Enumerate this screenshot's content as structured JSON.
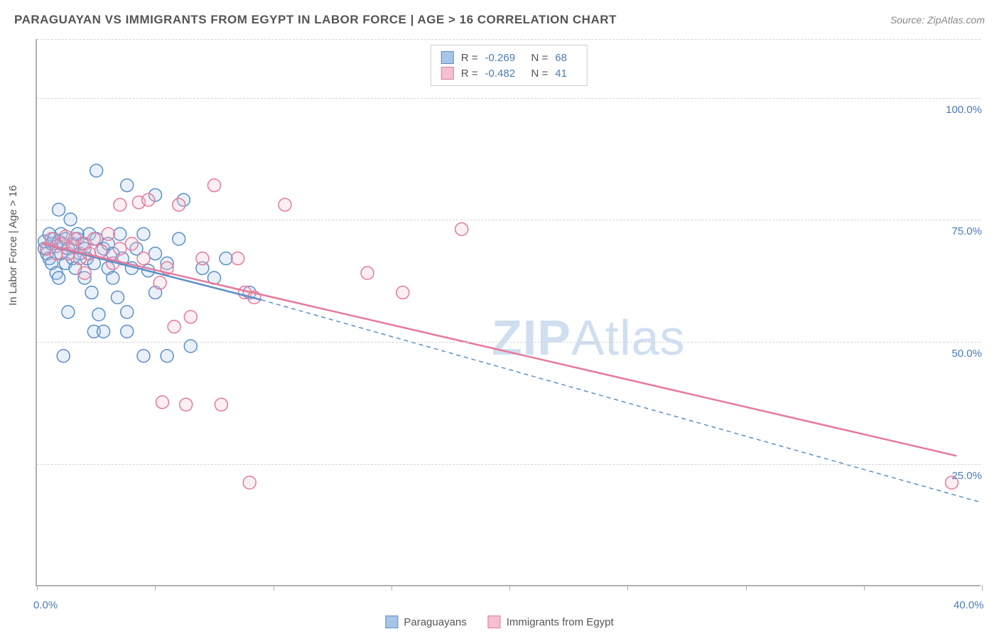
{
  "header": {
    "title": "PARAGUAYAN VS IMMIGRANTS FROM EGYPT IN LABOR FORCE | AGE > 16 CORRELATION CHART",
    "source": "Source: ZipAtlas.com"
  },
  "watermark": {
    "bold": "ZIP",
    "regular": "Atlas"
  },
  "chart": {
    "type": "scatter",
    "background_color": "#ffffff",
    "grid_color": "#d5d5d5",
    "axis_color": "#b0b0b0",
    "text_color": "#555555",
    "value_color": "#4a7bb5",
    "y_title": "In Labor Force | Age > 16",
    "xlim": [
      0,
      40
    ],
    "ylim": [
      0,
      112
    ],
    "x_ticks": [
      0,
      5,
      10,
      15,
      20,
      25,
      30,
      35,
      40
    ],
    "x_tick_labels": {
      "0": "0.0%",
      "40": "40.0%"
    },
    "y_ticks": [
      25,
      50,
      75,
      100
    ],
    "y_tick_labels": {
      "25": "25.0%",
      "50": "50.0%",
      "75": "75.0%",
      "100": "100.0%"
    },
    "marker_radius": 9,
    "marker_stroke_width": 1.5,
    "marker_fill_opacity": 0.25,
    "series": [
      {
        "name": "Paraguayans",
        "color_fill": "#a8c5e8",
        "color_stroke": "#5a8fc9",
        "R": "-0.269",
        "N": "68",
        "trend_solid": {
          "x1": 0.2,
          "y1": 70,
          "x2": 9.5,
          "y2": 58.5
        },
        "trend_dashed": {
          "x1": 9.5,
          "y1": 58.5,
          "x2": 40,
          "y2": 17
        },
        "points": [
          [
            0.3,
            69
          ],
          [
            0.3,
            70.5
          ],
          [
            0.4,
            68
          ],
          [
            0.5,
            72
          ],
          [
            0.5,
            67
          ],
          [
            0.6,
            70
          ],
          [
            0.6,
            66
          ],
          [
            0.7,
            71
          ],
          [
            0.8,
            69.5
          ],
          [
            0.8,
            64
          ],
          [
            0.9,
            70.5
          ],
          [
            0.9,
            77
          ],
          [
            0.9,
            63
          ],
          [
            1.0,
            68
          ],
          [
            1.0,
            72
          ],
          [
            1.1,
            70
          ],
          [
            1.1,
            47
          ],
          [
            1.2,
            66
          ],
          [
            1.2,
            71
          ],
          [
            1.3,
            69
          ],
          [
            1.3,
            56
          ],
          [
            1.4,
            75
          ],
          [
            1.5,
            67
          ],
          [
            1.5,
            70
          ],
          [
            1.6,
            65
          ],
          [
            1.7,
            71
          ],
          [
            1.7,
            72
          ],
          [
            1.8,
            68
          ],
          [
            1.9,
            70
          ],
          [
            2.0,
            63
          ],
          [
            2.0,
            69
          ],
          [
            2.1,
            67
          ],
          [
            2.2,
            72
          ],
          [
            2.3,
            60
          ],
          [
            2.4,
            66
          ],
          [
            2.4,
            52
          ],
          [
            2.5,
            85
          ],
          [
            2.5,
            71
          ],
          [
            2.6,
            55.5
          ],
          [
            2.8,
            69
          ],
          [
            2.8,
            52
          ],
          [
            3.0,
            65
          ],
          [
            3.0,
            70
          ],
          [
            3.2,
            68
          ],
          [
            3.2,
            63
          ],
          [
            3.4,
            59
          ],
          [
            3.5,
            72
          ],
          [
            3.6,
            67
          ],
          [
            3.8,
            82
          ],
          [
            3.8,
            52
          ],
          [
            3.8,
            56
          ],
          [
            4.0,
            65
          ],
          [
            4.2,
            69
          ],
          [
            4.5,
            72
          ],
          [
            4.5,
            47
          ],
          [
            4.7,
            64.5
          ],
          [
            5.0,
            80
          ],
          [
            5.0,
            68
          ],
          [
            5.0,
            60
          ],
          [
            5.5,
            66
          ],
          [
            5.5,
            47
          ],
          [
            6.0,
            71
          ],
          [
            6.2,
            79
          ],
          [
            6.5,
            49
          ],
          [
            7.0,
            65
          ],
          [
            7.5,
            63
          ],
          [
            8.0,
            67
          ],
          [
            9.0,
            60
          ]
        ]
      },
      {
        "name": "Immigrants from Egypt",
        "color_fill": "#f5c0cf",
        "color_stroke": "#e57a9a",
        "R": "-0.482",
        "N": "41",
        "trend_solid": {
          "x1": 0.2,
          "y1": 70,
          "x2": 39,
          "y2": 26.5
        },
        "trend_dashed": null,
        "points": [
          [
            0.4,
            69
          ],
          [
            0.6,
            71
          ],
          [
            0.8,
            68
          ],
          [
            1.0,
            70
          ],
          [
            1.2,
            71.5
          ],
          [
            1.3,
            68
          ],
          [
            1.5,
            69.5
          ],
          [
            1.6,
            71
          ],
          [
            1.8,
            67
          ],
          [
            2.0,
            70
          ],
          [
            2.0,
            64
          ],
          [
            2.2,
            68
          ],
          [
            2.4,
            71
          ],
          [
            2.7,
            68.5
          ],
          [
            3.0,
            72
          ],
          [
            3.2,
            66
          ],
          [
            3.5,
            69
          ],
          [
            3.5,
            78
          ],
          [
            4.0,
            70
          ],
          [
            4.3,
            78.5
          ],
          [
            4.5,
            67
          ],
          [
            4.7,
            79
          ],
          [
            5.2,
            62
          ],
          [
            5.3,
            37.5
          ],
          [
            5.5,
            65
          ],
          [
            5.8,
            53
          ],
          [
            6.0,
            78
          ],
          [
            6.3,
            37
          ],
          [
            6.5,
            55
          ],
          [
            7.0,
            67
          ],
          [
            7.5,
            82
          ],
          [
            7.8,
            37
          ],
          [
            8.5,
            67
          ],
          [
            8.8,
            60
          ],
          [
            9.0,
            21
          ],
          [
            9.2,
            59
          ],
          [
            10.5,
            78
          ],
          [
            14.0,
            64
          ],
          [
            15.5,
            60
          ],
          [
            18.0,
            73
          ],
          [
            38.8,
            21
          ]
        ]
      }
    ]
  },
  "stats_legend": {
    "r_label": "R =",
    "n_label": "N ="
  },
  "bottom_legend": {
    "items": [
      "Paraguayans",
      "Immigrants from Egypt"
    ]
  }
}
